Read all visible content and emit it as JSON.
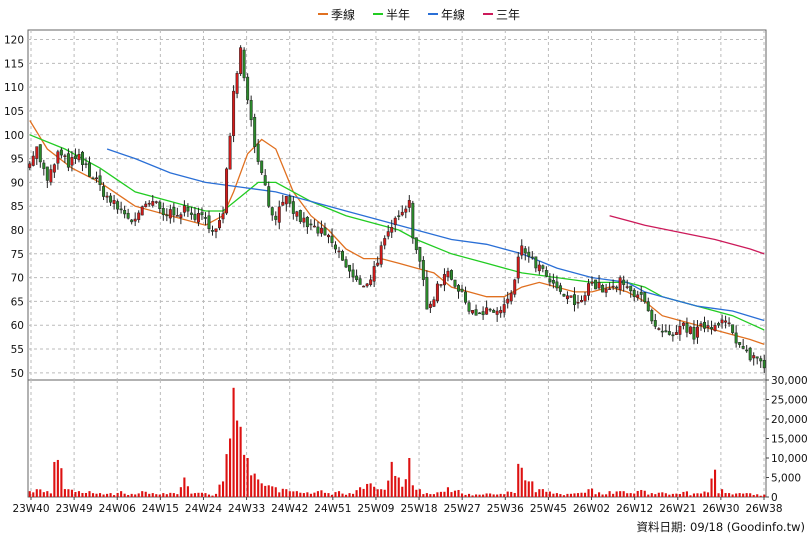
{
  "chart_data": {
    "type": "candlestick",
    "legend": [
      {
        "name": "季線",
        "color": "#e07020"
      },
      {
        "name": "半年",
        "color": "#22cc22"
      },
      {
        "name": "年線",
        "color": "#2a6fd6"
      },
      {
        "name": "三年",
        "color": "#cc1a5a"
      }
    ],
    "colors": {
      "up": "#d41a1a",
      "down": "#2a8a2a",
      "volume": "#dd1111",
      "grid": "#bbbbbb"
    },
    "price_axis": {
      "ticks": [
        50,
        55,
        60,
        65,
        70,
        75,
        80,
        85,
        90,
        95,
        100,
        105,
        110,
        115,
        120
      ],
      "ylim": [
        48.5,
        122
      ]
    },
    "volume_axis": {
      "ticks": [
        0,
        5000,
        10000,
        15000,
        20000,
        25000,
        30000
      ],
      "tick_labels": [
        "0",
        "5,000",
        "10,000",
        "15,000",
        "20,000",
        "25,000",
        "30,000"
      ],
      "ylim": [
        0,
        30000
      ]
    },
    "x_labels": [
      "23W40",
      "23W49",
      "24W06",
      "24W15",
      "24W24",
      "24W33",
      "24W42",
      "24W51",
      "25W09",
      "25W18",
      "25W27",
      "25W36",
      "25W45",
      "26W02",
      "26W12",
      "26W21",
      "26W30",
      "26W38"
    ],
    "key_points": [
      [
        0,
        95,
        1500
      ],
      [
        2,
        97,
        2000
      ],
      [
        5,
        90,
        1500
      ],
      [
        8,
        96,
        9500
      ],
      [
        11,
        94,
        2000
      ],
      [
        14,
        95,
        1500
      ],
      [
        17,
        92,
        1500
      ],
      [
        20,
        89,
        1000
      ],
      [
        23,
        86,
        1000
      ],
      [
        26,
        84,
        1500
      ],
      [
        29,
        82,
        800
      ],
      [
        32,
        84,
        1500
      ],
      [
        35,
        86,
        1000
      ],
      [
        38,
        83,
        1000
      ],
      [
        41,
        84,
        1000
      ],
      [
        44,
        84,
        5000
      ],
      [
        47,
        83,
        1000
      ],
      [
        50,
        82,
        1000
      ],
      [
        53,
        80,
        800
      ],
      [
        55,
        83,
        4000
      ],
      [
        56,
        92,
        11000
      ],
      [
        57,
        100,
        15000
      ],
      [
        58,
        110,
        28000
      ],
      [
        60,
        118,
        18000
      ],
      [
        62,
        108,
        10000
      ],
      [
        64,
        98,
        6000
      ],
      [
        65,
        95,
        4500
      ],
      [
        66,
        93,
        3500
      ],
      [
        68,
        85,
        3000
      ],
      [
        70,
        83,
        2500
      ],
      [
        73,
        86,
        2000
      ],
      [
        76,
        83,
        1500
      ],
      [
        79,
        81,
        1200
      ],
      [
        82,
        80,
        1500
      ],
      [
        85,
        78,
        1000
      ],
      [
        88,
        75,
        1500
      ],
      [
        91,
        71,
        1000
      ],
      [
        94,
        68,
        2500
      ],
      [
        97,
        70,
        3500
      ],
      [
        100,
        76,
        2000
      ],
      [
        103,
        80,
        9000
      ],
      [
        105,
        84,
        5000
      ],
      [
        108,
        86,
        10000
      ],
      [
        109,
        79,
        3000
      ],
      [
        111,
        74,
        2000
      ],
      [
        113,
        63,
        1000
      ],
      [
        116,
        68,
        1200
      ],
      [
        119,
        72,
        2500
      ],
      [
        122,
        67,
        1800
      ],
      [
        125,
        64,
        800
      ],
      [
        128,
        62,
        600
      ],
      [
        131,
        63,
        900
      ],
      [
        134,
        63,
        800
      ],
      [
        137,
        66,
        1300
      ],
      [
        140,
        77,
        7500
      ],
      [
        142,
        74,
        4000
      ],
      [
        145,
        72,
        2000
      ],
      [
        148,
        69,
        1400
      ],
      [
        150,
        67,
        1000
      ],
      [
        153,
        66,
        800
      ],
      [
        156,
        64,
        1000
      ],
      [
        159,
        69,
        2000
      ],
      [
        162,
        68,
        1200
      ],
      [
        165,
        67,
        1500
      ],
      [
        168,
        69,
        1500
      ],
      [
        171,
        67,
        1000
      ],
      [
        174,
        67,
        1800
      ],
      [
        177,
        60,
        1000
      ],
      [
        180,
        58,
        1200
      ],
      [
        183,
        57,
        800
      ],
      [
        186,
        60,
        1300
      ],
      [
        189,
        58,
        900
      ],
      [
        192,
        60,
        1400
      ],
      [
        195,
        60,
        7000
      ],
      [
        197,
        62,
        2000
      ],
      [
        199,
        60,
        1000
      ],
      [
        201,
        56,
        900
      ],
      [
        204,
        54,
        1000
      ],
      [
        207,
        53,
        700
      ],
      [
        209,
        52,
        600
      ]
    ],
    "n_candles": 210,
    "ma_quarter_pts": [
      [
        0,
        103
      ],
      [
        5,
        97
      ],
      [
        12,
        93
      ],
      [
        20,
        90
      ],
      [
        30,
        85
      ],
      [
        40,
        83
      ],
      [
        50,
        81
      ],
      [
        55,
        83
      ],
      [
        58,
        88
      ],
      [
        62,
        96
      ],
      [
        66,
        99
      ],
      [
        70,
        97
      ],
      [
        75,
        88
      ],
      [
        80,
        83
      ],
      [
        85,
        80
      ],
      [
        90,
        76
      ],
      [
        95,
        74
      ],
      [
        100,
        74
      ],
      [
        105,
        73
      ],
      [
        110,
        72
      ],
      [
        115,
        71
      ],
      [
        120,
        68
      ],
      [
        125,
        67
      ],
      [
        130,
        66
      ],
      [
        135,
        66
      ],
      [
        140,
        68
      ],
      [
        145,
        69
      ],
      [
        150,
        68
      ],
      [
        155,
        67
      ],
      [
        160,
        67
      ],
      [
        165,
        68
      ],
      [
        170,
        67
      ],
      [
        175,
        65
      ],
      [
        180,
        62
      ],
      [
        185,
        61
      ],
      [
        190,
        60
      ],
      [
        195,
        59
      ],
      [
        200,
        58
      ],
      [
        205,
        57
      ],
      [
        210,
        56
      ]
    ],
    "ma_half_pts": [
      [
        0,
        100
      ],
      [
        10,
        97
      ],
      [
        20,
        93
      ],
      [
        30,
        88
      ],
      [
        40,
        86
      ],
      [
        50,
        84
      ],
      [
        55,
        84
      ],
      [
        60,
        87
      ],
      [
        65,
        90
      ],
      [
        70,
        90
      ],
      [
        75,
        88
      ],
      [
        80,
        86
      ],
      [
        90,
        83
      ],
      [
        100,
        81
      ],
      [
        105,
        80
      ],
      [
        110,
        78
      ],
      [
        120,
        75
      ],
      [
        130,
        73
      ],
      [
        140,
        71
      ],
      [
        150,
        70
      ],
      [
        160,
        69
      ],
      [
        170,
        69
      ],
      [
        175,
        68
      ],
      [
        180,
        66
      ],
      [
        190,
        64
      ],
      [
        200,
        62
      ],
      [
        210,
        59
      ]
    ],
    "ma_year_pts": [
      [
        22,
        97
      ],
      [
        30,
        95
      ],
      [
        40,
        92
      ],
      [
        50,
        90
      ],
      [
        60,
        89
      ],
      [
        70,
        88
      ],
      [
        80,
        86
      ],
      [
        90,
        84
      ],
      [
        100,
        82
      ],
      [
        110,
        80
      ],
      [
        120,
        78
      ],
      [
        130,
        77
      ],
      [
        140,
        75
      ],
      [
        150,
        72
      ],
      [
        160,
        70
      ],
      [
        170,
        69
      ],
      [
        175,
        67
      ],
      [
        180,
        66
      ],
      [
        190,
        64
      ],
      [
        200,
        63
      ],
      [
        210,
        61
      ]
    ],
    "ma_3y_pts": [
      [
        165,
        83
      ],
      [
        175,
        81
      ],
      [
        185,
        79.5
      ],
      [
        195,
        78
      ],
      [
        205,
        76
      ],
      [
        210,
        75
      ]
    ],
    "source_label": "資料日期: 09/18 (Goodinfo.tw)"
  }
}
